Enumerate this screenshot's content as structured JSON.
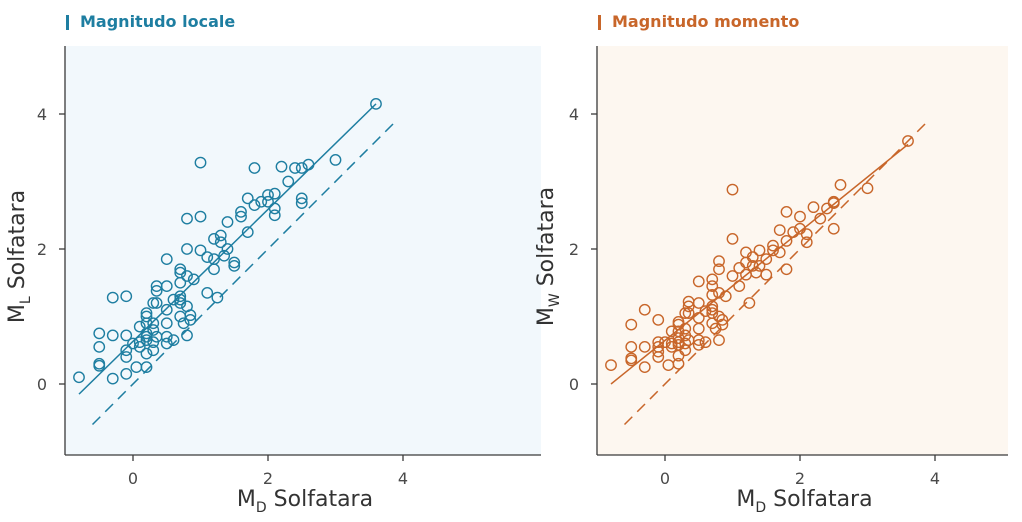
{
  "chart_data": [
    {
      "type": "scatter",
      "title": "Magnitudo locale",
      "accent_color": "#1e7ea1",
      "background_color": "#f2f8fc",
      "xlabel_main": "M",
      "xlabel_sub": "D",
      "xlabel_rest": " Solfatara",
      "ylabel_main": "M",
      "ylabel_sub": "L",
      "ylabel_rest": " Solfatara",
      "xlim": [
        -1,
        5
      ],
      "ylim": [
        -1,
        5
      ],
      "xticks": [
        "0",
        "2",
        "4"
      ],
      "yticks": [
        "0",
        "2",
        "4"
      ],
      "fit_line": [
        [
          -0.8,
          -0.15
        ],
        [
          3.6,
          4.15
        ]
      ],
      "reference_line": [
        [
          -0.6,
          -0.6
        ],
        [
          3.9,
          3.9
        ]
      ],
      "points": [
        [
          -0.8,
          0.1
        ],
        [
          -0.5,
          0.75
        ],
        [
          -0.5,
          0.55
        ],
        [
          -0.5,
          0.3
        ],
        [
          -0.5,
          0.27
        ],
        [
          -0.3,
          1.28
        ],
        [
          -0.3,
          0.72
        ],
        [
          -0.3,
          0.08
        ],
        [
          -0.1,
          1.3
        ],
        [
          -0.1,
          0.72
        ],
        [
          -0.1,
          0.5
        ],
        [
          -0.1,
          0.4
        ],
        [
          -0.1,
          0.15
        ],
        [
          0.0,
          0.6
        ],
        [
          0.05,
          0.25
        ],
        [
          0.1,
          0.85
        ],
        [
          0.1,
          0.62
        ],
        [
          0.1,
          0.55
        ],
        [
          0.2,
          1.05
        ],
        [
          0.2,
          1.0
        ],
        [
          0.2,
          0.9
        ],
        [
          0.2,
          0.75
        ],
        [
          0.2,
          0.7
        ],
        [
          0.2,
          0.65
        ],
        [
          0.2,
          0.45
        ],
        [
          0.2,
          0.25
        ],
        [
          0.3,
          1.2
        ],
        [
          0.3,
          0.9
        ],
        [
          0.3,
          0.8
        ],
        [
          0.3,
          0.62
        ],
        [
          0.3,
          0.5
        ],
        [
          0.35,
          1.45
        ],
        [
          0.35,
          1.38
        ],
        [
          0.35,
          1.2
        ],
        [
          0.35,
          0.7
        ],
        [
          0.5,
          1.85
        ],
        [
          0.5,
          1.45
        ],
        [
          0.5,
          1.1
        ],
        [
          0.5,
          0.9
        ],
        [
          0.5,
          0.7
        ],
        [
          0.5,
          0.6
        ],
        [
          0.6,
          1.25
        ],
        [
          0.6,
          0.65
        ],
        [
          0.7,
          1.7
        ],
        [
          0.7,
          1.65
        ],
        [
          0.7,
          1.5
        ],
        [
          0.7,
          1.3
        ],
        [
          0.7,
          1.25
        ],
        [
          0.7,
          1.2
        ],
        [
          0.7,
          1.0
        ],
        [
          0.75,
          0.9
        ],
        [
          0.8,
          2.45
        ],
        [
          0.8,
          2.0
        ],
        [
          0.8,
          1.6
        ],
        [
          0.8,
          1.15
        ],
        [
          0.8,
          0.72
        ],
        [
          0.85,
          1.02
        ],
        [
          0.85,
          0.95
        ],
        [
          0.9,
          1.55
        ],
        [
          1.0,
          3.28
        ],
        [
          1.0,
          2.48
        ],
        [
          1.0,
          1.98
        ],
        [
          1.1,
          1.88
        ],
        [
          1.1,
          1.35
        ],
        [
          1.2,
          2.15
        ],
        [
          1.2,
          1.85
        ],
        [
          1.2,
          1.7
        ],
        [
          1.25,
          1.28
        ],
        [
          1.3,
          2.2
        ],
        [
          1.3,
          2.1
        ],
        [
          1.35,
          1.9
        ],
        [
          1.4,
          2.4
        ],
        [
          1.4,
          2.0
        ],
        [
          1.5,
          1.8
        ],
        [
          1.5,
          1.75
        ],
        [
          1.6,
          2.55
        ],
        [
          1.6,
          2.48
        ],
        [
          1.7,
          2.75
        ],
        [
          1.7,
          2.25
        ],
        [
          1.8,
          3.2
        ],
        [
          1.8,
          2.65
        ],
        [
          1.9,
          2.7
        ],
        [
          2.0,
          2.8
        ],
        [
          2.0,
          2.7
        ],
        [
          2.1,
          2.82
        ],
        [
          2.1,
          2.6
        ],
        [
          2.1,
          2.5
        ],
        [
          2.2,
          3.22
        ],
        [
          2.3,
          3.0
        ],
        [
          2.4,
          3.2
        ],
        [
          2.5,
          3.2
        ],
        [
          2.5,
          2.75
        ],
        [
          2.5,
          2.68
        ],
        [
          2.6,
          3.25
        ],
        [
          3.0,
          3.32
        ],
        [
          3.6,
          4.15
        ]
      ]
    },
    {
      "type": "scatter",
      "title": "Magnitudo momento",
      "accent_color": "#c8662a",
      "background_color": "#fdf7f0",
      "xlabel_main": "M",
      "xlabel_sub": "D",
      "xlabel_rest": " Solfatara",
      "ylabel_main": "M",
      "ylabel_sub": "W",
      "ylabel_rest": " Solfatara",
      "xlim": [
        -1,
        5
      ],
      "ylim": [
        -1,
        5
      ],
      "xticks": [
        "0",
        "2",
        "4"
      ],
      "yticks": [
        "0",
        "2",
        "4"
      ],
      "fit_line": [
        [
          -0.8,
          0.0
        ],
        [
          3.6,
          3.55
        ]
      ],
      "reference_line": [
        [
          -0.6,
          -0.6
        ],
        [
          3.9,
          3.9
        ]
      ],
      "points": [
        [
          -0.8,
          0.28
        ],
        [
          -0.5,
          0.88
        ],
        [
          -0.5,
          0.55
        ],
        [
          -0.5,
          0.38
        ],
        [
          -0.5,
          0.35
        ],
        [
          -0.3,
          1.1
        ],
        [
          -0.3,
          0.55
        ],
        [
          -0.3,
          0.25
        ],
        [
          -0.1,
          0.95
        ],
        [
          -0.1,
          0.62
        ],
        [
          -0.1,
          0.48
        ],
        [
          -0.1,
          0.4
        ],
        [
          -0.1,
          0.55
        ],
        [
          0.0,
          0.62
        ],
        [
          0.05,
          0.28
        ],
        [
          0.1,
          0.78
        ],
        [
          0.1,
          0.6
        ],
        [
          0.1,
          0.55
        ],
        [
          0.2,
          0.92
        ],
        [
          0.2,
          0.88
        ],
        [
          0.2,
          0.78
        ],
        [
          0.2,
          0.68
        ],
        [
          0.2,
          0.62
        ],
        [
          0.2,
          0.58
        ],
        [
          0.2,
          0.42
        ],
        [
          0.2,
          0.3
        ],
        [
          0.3,
          1.05
        ],
        [
          0.3,
          0.82
        ],
        [
          0.3,
          0.72
        ],
        [
          0.3,
          0.6
        ],
        [
          0.3,
          0.5
        ],
        [
          0.35,
          1.22
        ],
        [
          0.35,
          1.15
        ],
        [
          0.35,
          1.05
        ],
        [
          0.35,
          0.65
        ],
        [
          0.5,
          1.52
        ],
        [
          0.5,
          1.2
        ],
        [
          0.5,
          0.98
        ],
        [
          0.5,
          0.82
        ],
        [
          0.5,
          0.65
        ],
        [
          0.5,
          0.58
        ],
        [
          0.6,
          1.08
        ],
        [
          0.6,
          0.62
        ],
        [
          0.7,
          1.55
        ],
        [
          0.7,
          1.45
        ],
        [
          0.7,
          1.32
        ],
        [
          0.7,
          1.15
        ],
        [
          0.7,
          1.1
        ],
        [
          0.7,
          1.05
        ],
        [
          0.7,
          0.9
        ],
        [
          0.75,
          0.82
        ],
        [
          0.8,
          1.82
        ],
        [
          0.8,
          1.7
        ],
        [
          0.8,
          1.35
        ],
        [
          0.8,
          1.0
        ],
        [
          0.8,
          0.65
        ],
        [
          0.85,
          0.95
        ],
        [
          0.85,
          0.88
        ],
        [
          0.9,
          1.3
        ],
        [
          1.0,
          2.88
        ],
        [
          1.0,
          2.15
        ],
        [
          1.0,
          1.6
        ],
        [
          1.1,
          1.72
        ],
        [
          1.1,
          1.45
        ],
        [
          1.2,
          1.95
        ],
        [
          1.2,
          1.8
        ],
        [
          1.2,
          1.62
        ],
        [
          1.25,
          1.2
        ],
        [
          1.3,
          1.88
        ],
        [
          1.3,
          1.75
        ],
        [
          1.35,
          1.65
        ],
        [
          1.4,
          1.98
        ],
        [
          1.4,
          1.75
        ],
        [
          1.5,
          1.62
        ],
        [
          1.5,
          1.85
        ],
        [
          1.6,
          2.05
        ],
        [
          1.6,
          1.98
        ],
        [
          1.7,
          2.28
        ],
        [
          1.7,
          1.95
        ],
        [
          1.8,
          2.55
        ],
        [
          1.8,
          2.12
        ],
        [
          1.8,
          1.7
        ],
        [
          1.9,
          2.25
        ],
        [
          2.0,
          2.48
        ],
        [
          2.0,
          2.3
        ],
        [
          2.1,
          2.22
        ],
        [
          2.1,
          2.1
        ],
        [
          2.2,
          2.62
        ],
        [
          2.3,
          2.45
        ],
        [
          2.4,
          2.6
        ],
        [
          2.5,
          2.7
        ],
        [
          2.5,
          2.68
        ],
        [
          2.5,
          2.3
        ],
        [
          2.6,
          2.95
        ],
        [
          3.0,
          2.9
        ],
        [
          3.6,
          3.6
        ]
      ]
    }
  ]
}
